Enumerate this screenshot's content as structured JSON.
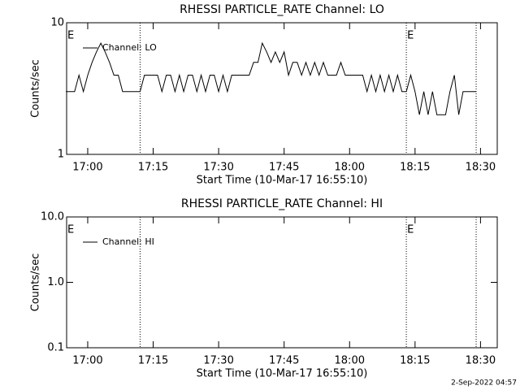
{
  "chart_data": [
    {
      "type": "line",
      "title": "RHESSI PARTICLE_RATE Channel: LO",
      "xlabel": "Start Time (10-Mar-17 16:55:10)",
      "ylabel": "Counts/sec",
      "log_scale": true,
      "ylim": [
        1,
        10
      ],
      "yticks": [
        1,
        10
      ],
      "xlim": [
        "16:55:10",
        "18:33:50"
      ],
      "xticks": [
        "17:00",
        "17:15",
        "17:30",
        "17:45",
        "18:00",
        "18:15",
        "18:30"
      ],
      "event_lines": [
        "17:12",
        "18:13",
        "18:29"
      ],
      "annotations": [
        {
          "x": "16:55:10",
          "text": "E"
        },
        {
          "x": "18:13",
          "text": "E"
        }
      ],
      "x": [
        "16:55",
        "16:56",
        "16:57",
        "16:58",
        "16:59",
        "17:00",
        "17:01",
        "17:02",
        "17:03",
        "17:04",
        "17:05",
        "17:06",
        "17:07",
        "17:08",
        "17:09",
        "17:10",
        "17:11",
        "17:12",
        "17:13",
        "17:14",
        "17:15",
        "17:16",
        "17:17",
        "17:18",
        "17:19",
        "17:20",
        "17:21",
        "17:22",
        "17:23",
        "17:24",
        "17:25",
        "17:26",
        "17:27",
        "17:28",
        "17:29",
        "17:30",
        "17:31",
        "17:32",
        "17:33",
        "17:34",
        "17:35",
        "17:36",
        "17:37",
        "17:38",
        "17:39",
        "17:40",
        "17:41",
        "17:42",
        "17:43",
        "17:44",
        "17:45",
        "17:46",
        "17:47",
        "17:48",
        "17:49",
        "17:50",
        "17:51",
        "17:52",
        "17:53",
        "17:54",
        "17:55",
        "17:56",
        "17:57",
        "17:58",
        "17:59",
        "18:00",
        "18:01",
        "18:02",
        "18:03",
        "18:04",
        "18:05",
        "18:06",
        "18:07",
        "18:08",
        "18:09",
        "18:10",
        "18:11",
        "18:12",
        "18:13",
        "18:14",
        "18:15",
        "18:16",
        "18:17",
        "18:18",
        "18:19",
        "18:20",
        "18:21",
        "18:22",
        "18:23",
        "18:24",
        "18:25",
        "18:26",
        "18:27",
        "18:28",
        "18:29"
      ],
      "series": [
        {
          "name": "Channel: LO",
          "color": "#000000",
          "values": [
            3,
            3,
            3,
            4,
            3,
            4,
            5,
            6,
            7,
            6,
            5,
            4,
            4,
            3,
            3,
            3,
            3,
            3,
            4,
            4,
            4,
            4,
            3,
            4,
            4,
            3,
            4,
            3,
            4,
            4,
            3,
            4,
            3,
            4,
            4,
            3,
            4,
            3,
            4,
            4,
            4,
            4,
            4,
            5,
            5,
            7,
            6,
            5,
            6,
            5,
            6,
            4,
            5,
            5,
            4,
            5,
            4,
            5,
            4,
            5,
            4,
            4,
            4,
            5,
            4,
            4,
            4,
            4,
            4,
            3,
            4,
            3,
            4,
            3,
            4,
            3,
            4,
            3,
            3,
            4,
            3,
            2,
            3,
            2,
            3,
            2,
            2,
            2,
            3,
            4,
            2,
            3,
            3,
            3,
            3
          ]
        }
      ]
    },
    {
      "type": "line",
      "title": "RHESSI PARTICLE_RATE Channel: HI",
      "xlabel": "Start Time (10-Mar-17 16:55:10)",
      "ylabel": "Counts/sec",
      "log_scale": true,
      "ylim": [
        0.1,
        10
      ],
      "yticks": [
        {
          "value": 0.1,
          "label": "0.1"
        },
        {
          "value": 1,
          "label": "1.0"
        },
        {
          "value": 10,
          "label": "10.0"
        }
      ],
      "xlim": [
        "16:55:10",
        "18:33:50"
      ],
      "xticks": [
        "17:00",
        "17:15",
        "17:30",
        "17:45",
        "18:00",
        "18:15",
        "18:30"
      ],
      "event_lines": [
        "17:12",
        "18:13",
        "18:29"
      ],
      "annotations": [
        {
          "x": "16:55:10",
          "text": "E"
        },
        {
          "x": "18:13",
          "text": "E"
        }
      ],
      "x": [],
      "series": [
        {
          "name": "Channel: HI",
          "color": "#000000",
          "values": []
        }
      ]
    }
  ],
  "footer": "2-Sep-2022 04:57"
}
